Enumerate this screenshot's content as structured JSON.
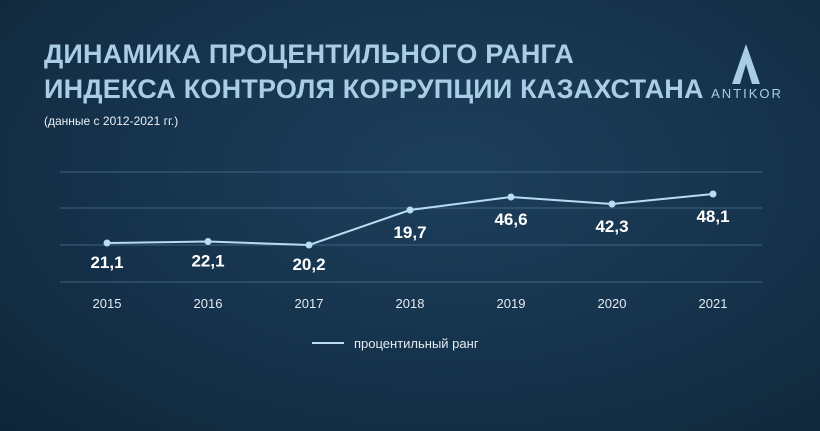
{
  "header": {
    "title_line1": "ДИНАМИКА ПРОЦЕНТИЛЬНОГО РАНГА",
    "title_line2": "ИНДЕКСА КОНТРОЛЯ КОРРУПЦИИ КАЗАХСТАНА",
    "subtitle": "(данные с 2012-2021 гг.)"
  },
  "logo": {
    "icon": "antikor-a-logo-icon",
    "text": "ANTIKOR"
  },
  "colors": {
    "title": "#a9cde6",
    "line": "#b8dcf2",
    "grid": "#3f6480",
    "label": "#ffffff"
  },
  "chart_data": {
    "type": "line",
    "x": [
      "2015",
      "2016",
      "2017",
      "2018",
      "2019",
      "2020",
      "2021"
    ],
    "series": [
      {
        "name": "процентильный ранг",
        "values": [
          21.1,
          22.1,
          20.2,
          19.7,
          46.6,
          42.3,
          48.1
        ],
        "labels": [
          "21,1",
          "22,1",
          "20,2",
          "19,7",
          "46,6",
          "42,3",
          "48,1"
        ]
      }
    ],
    "ylim": [
      0,
      60
    ],
    "grid": true,
    "legend": "bottom-center"
  }
}
